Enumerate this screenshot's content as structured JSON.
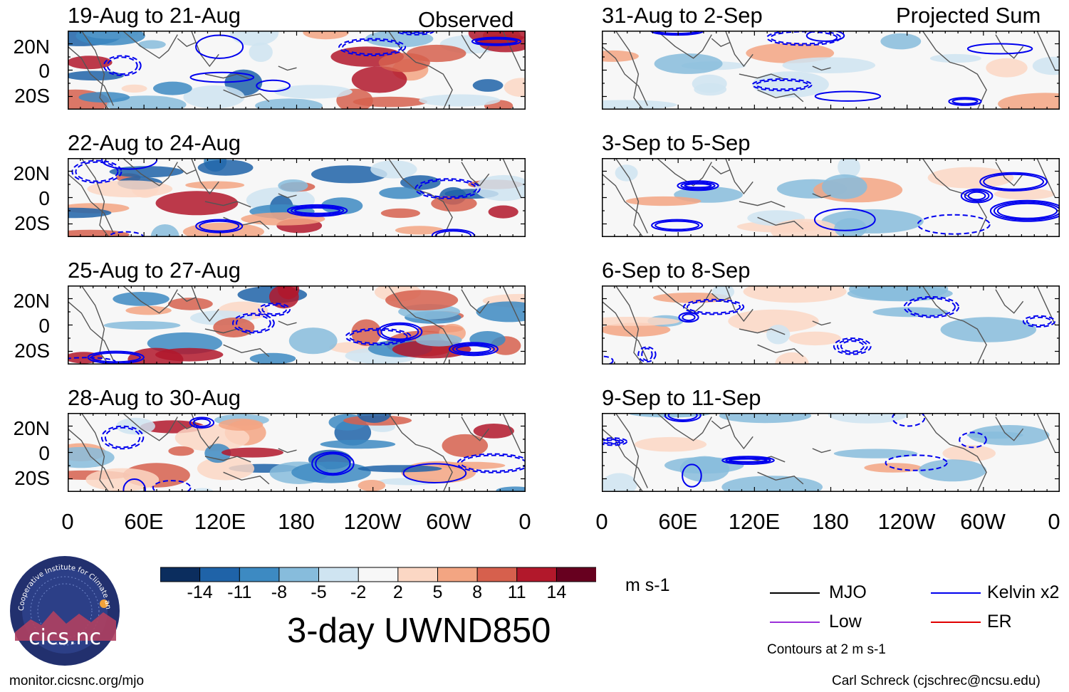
{
  "left_column": {
    "label": "Observed",
    "panels": [
      {
        "title": "19-Aug to 21-Aug"
      },
      {
        "title": "22-Aug to 24-Aug"
      },
      {
        "title": "25-Aug to 27-Aug"
      },
      {
        "title": "28-Aug to 30-Aug"
      }
    ]
  },
  "right_column": {
    "label": "Projected Sum",
    "panels": [
      {
        "title": "31-Aug to 2-Sep"
      },
      {
        "title": "3-Sep to 5-Sep"
      },
      {
        "title": "6-Sep to 8-Sep"
      },
      {
        "title": "9-Sep to 11-Sep"
      }
    ]
  },
  "axes": {
    "latitude_ticks": [
      "20N",
      "0",
      "20S"
    ],
    "longitude_ticks": [
      "0",
      "60E",
      "120E",
      "180",
      "120W",
      "60W",
      "0"
    ]
  },
  "colorbar": {
    "labels": [
      "-14",
      "-11",
      "-8",
      "-5",
      "-2",
      "2",
      "5",
      "8",
      "11",
      "14"
    ],
    "colors": [
      "#0b2d5e",
      "#1f63a8",
      "#3d8ac2",
      "#87bcdc",
      "#cfe4f1",
      "#f7f7f7",
      "#fbd7c4",
      "#f3a582",
      "#d6604d",
      "#b2182b",
      "#67001f"
    ],
    "units": "m s-1"
  },
  "main_title": "3-day UWND850",
  "logo": {
    "text": "cics.nc",
    "ring_text": "Cooperative Institute for Climate and Satellites"
  },
  "legend": {
    "items": [
      {
        "label": "MJO",
        "color": "#000000"
      },
      {
        "label": "Kelvin x2",
        "color": "#0000ee"
      },
      {
        "label": "Low",
        "color": "#9b30d9"
      },
      {
        "label": "ER",
        "color": "#e00000"
      }
    ],
    "contour_note": "Contours at 2 m s-1"
  },
  "footer": {
    "left": "monitor.cicsnc.org/mjo",
    "right": "Carl Schreck (cjschrec@ncsu.edu)"
  }
}
